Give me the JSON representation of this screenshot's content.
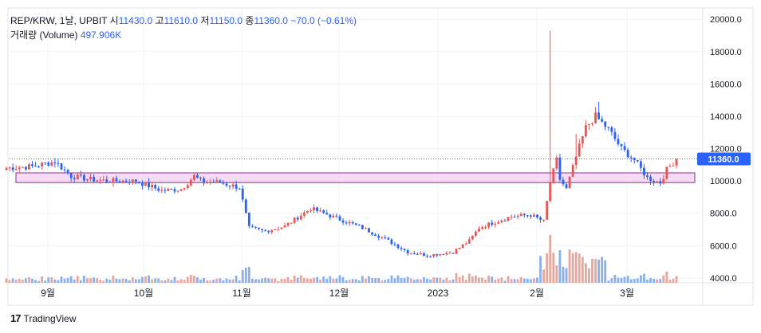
{
  "header": {
    "symbol": "REP/KRW, 1날, UPBIT",
    "open_label": "시",
    "open": "11430.0",
    "high_label": "고",
    "high": "11610.0",
    "low_label": "저",
    "low": "11150.0",
    "close_label": "종",
    "close": "11360.0",
    "change": "−70.0 (−0.61%)",
    "volume_label": "거래량 (Volume)",
    "volume": "497.906K"
  },
  "footer": {
    "brand": "TradingView",
    "logo_icon": "tradingview-logo-icon"
  },
  "colors": {
    "up": "#ef5350",
    "down": "#2962ff",
    "volume_up": "#e8a79d",
    "volume_down": "#8ab0f0",
    "zone_fill": "#f3d5f3",
    "zone_stroke": "#8e2c8e",
    "last_price_bg": "#2962ff"
  },
  "chart_data": {
    "type": "candlestick",
    "y_axis_ticks": [
      "20000.0",
      "18000.0",
      "16000.0",
      "14000.0",
      "12000.0",
      "10000.0",
      "8000.0",
      "6000.0",
      "4000.0"
    ],
    "y_axis_values": [
      20000,
      18000,
      16000,
      14000,
      12000,
      10000,
      8000,
      6000,
      4000
    ],
    "ylim": [
      3700,
      20700
    ],
    "x_axis_ticks": [
      "9월",
      "10월",
      "11월",
      "12월",
      "2023",
      "2월",
      "3월"
    ],
    "last_price_label": "11360.0",
    "last_price": 11360,
    "zone": {
      "low": 9900,
      "high": 10500
    },
    "keypoints": [
      [
        0,
        10800
      ],
      [
        8,
        10900
      ],
      [
        15,
        11200
      ],
      [
        20,
        10300
      ],
      [
        26,
        10100
      ],
      [
        32,
        10000
      ],
      [
        40,
        10000
      ],
      [
        44,
        9700
      ],
      [
        48,
        9400
      ],
      [
        54,
        9500
      ],
      [
        58,
        10300
      ],
      [
        60,
        10000
      ],
      [
        66,
        9900
      ],
      [
        72,
        9600
      ],
      [
        75,
        7100
      ],
      [
        80,
        6900
      ],
      [
        86,
        7200
      ],
      [
        94,
        8300
      ],
      [
        102,
        7700
      ],
      [
        110,
        7100
      ],
      [
        118,
        6300
      ],
      [
        124,
        5600
      ],
      [
        130,
        5400
      ],
      [
        138,
        5600
      ],
      [
        143,
        6300
      ],
      [
        146,
        7100
      ],
      [
        150,
        7400
      ],
      [
        156,
        7800
      ],
      [
        162,
        7900
      ],
      [
        166,
        7500
      ],
      [
        168,
        9900
      ],
      [
        170,
        11300
      ],
      [
        171,
        10100
      ],
      [
        173,
        9500
      ],
      [
        176,
        11500
      ],
      [
        179,
        13300
      ],
      [
        182,
        14000
      ],
      [
        186,
        13200
      ],
      [
        190,
        12000
      ],
      [
        194,
        11300
      ],
      [
        198,
        10200
      ],
      [
        202,
        9900
      ],
      [
        204,
        10700
      ],
      [
        207,
        11360
      ]
    ],
    "spikes": [
      [
        168,
        19300
      ],
      [
        183,
        14900
      ],
      [
        176,
        12900
      ]
    ]
  }
}
